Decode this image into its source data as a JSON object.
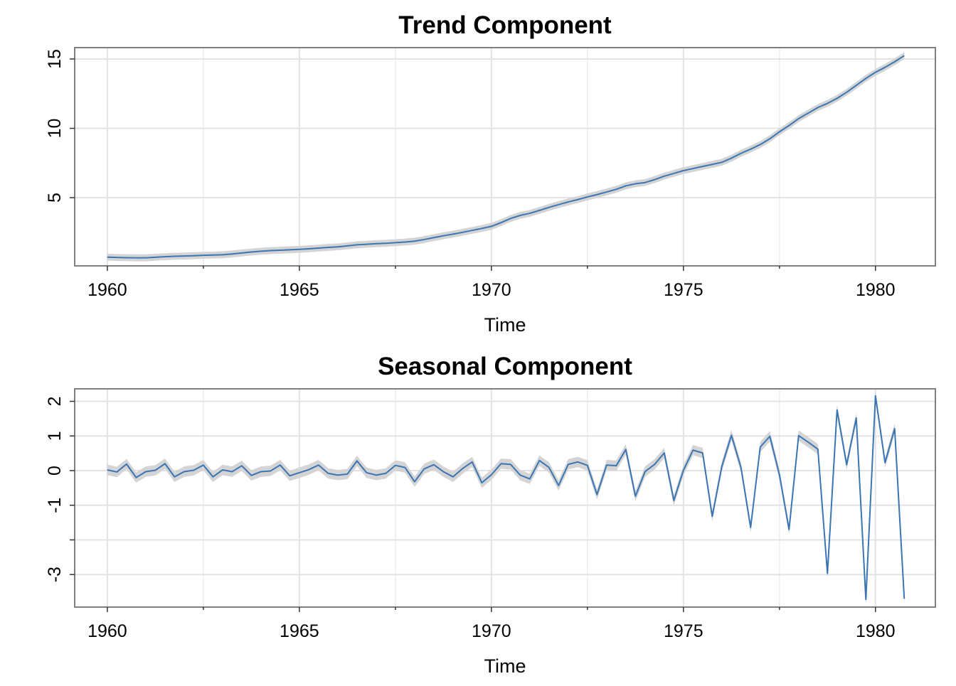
{
  "chart_data": [
    {
      "type": "line",
      "title": "Trend Component",
      "xlabel": "Time",
      "ylabel": "",
      "x_start": 1960,
      "x_step": 0.25,
      "xlim": [
        1959.15,
        1981.56
      ],
      "ylim": [
        0.08,
        15.82
      ],
      "xticks": [
        1960,
        1965,
        1970,
        1975,
        1980
      ],
      "yticks": [
        5,
        10,
        15
      ],
      "grid": true,
      "line_color": "#3a76b4",
      "band_color": "#d4d4d4",
      "band_halfwidth": 0.25,
      "values": [
        0.71,
        0.69,
        0.67,
        0.66,
        0.66,
        0.7,
        0.74,
        0.77,
        0.79,
        0.81,
        0.84,
        0.86,
        0.88,
        0.94,
        1.01,
        1.08,
        1.14,
        1.18,
        1.21,
        1.24,
        1.27,
        1.31,
        1.36,
        1.41,
        1.45,
        1.52,
        1.6,
        1.64,
        1.68,
        1.71,
        1.75,
        1.8,
        1.86,
        1.98,
        2.12,
        2.25,
        2.37,
        2.5,
        2.64,
        2.78,
        2.93,
        3.2,
        3.5,
        3.72,
        3.87,
        4.08,
        4.3,
        4.5,
        4.69,
        4.86,
        5.05,
        5.22,
        5.41,
        5.6,
        5.85,
        6.0,
        6.09,
        6.3,
        6.55,
        6.75,
        6.95,
        7.1,
        7.25,
        7.4,
        7.55,
        7.85,
        8.2,
        8.5,
        8.83,
        9.25,
        9.75,
        10.2,
        10.7,
        11.1,
        11.5,
        11.8,
        12.16,
        12.6,
        13.1,
        13.6,
        14.04,
        14.4,
        14.8,
        15.24
      ]
    },
    {
      "type": "line",
      "title": "Seasonal Component",
      "xlabel": "Time",
      "ylabel": "",
      "x_start": 1960,
      "x_step": 0.25,
      "xlim": [
        1959.15,
        1981.56
      ],
      "ylim": [
        -3.94,
        2.36
      ],
      "xticks": [
        1960,
        1965,
        1970,
        1975,
        1980
      ],
      "yticks": [
        2,
        1,
        0,
        -1,
        -2,
        -3
      ],
      "ytick_labels": [
        "2",
        "1",
        "0",
        "-1",
        "",
        "-3"
      ],
      "grid": true,
      "line_color": "#3a76b4",
      "band_color": "#d4d4d4",
      "band_halfwidth": 0.15,
      "values": [
        0.02,
        -0.04,
        0.19,
        -0.2,
        -0.03,
        0.01,
        0.2,
        -0.18,
        -0.03,
        0.01,
        0.16,
        -0.18,
        0.02,
        -0.03,
        0.14,
        -0.14,
        -0.03,
        -0.01,
        0.16,
        -0.15,
        -0.06,
        0.03,
        0.16,
        -0.08,
        -0.13,
        -0.1,
        0.28,
        -0.06,
        -0.13,
        -0.08,
        0.15,
        0.09,
        -0.32,
        0.05,
        0.17,
        -0.03,
        -0.18,
        0.06,
        0.25,
        -0.35,
        -0.12,
        0.2,
        0.18,
        -0.13,
        -0.24,
        0.29,
        0.09,
        -0.43,
        0.18,
        0.25,
        0.15,
        -0.69,
        0.16,
        0.14,
        0.61,
        -0.74,
        -0.03,
        0.18,
        0.51,
        -0.86,
        0.01,
        0.59,
        0.51,
        -1.32,
        0.12,
        1.02,
        0.08,
        -1.64,
        0.68,
        0.99,
        -0.12,
        -1.7,
        1.01,
        0.82,
        0.62,
        -2.97,
        1.75,
        0.17,
        1.52,
        -3.72,
        2.16,
        0.23,
        1.21,
        -3.7
      ]
    }
  ]
}
